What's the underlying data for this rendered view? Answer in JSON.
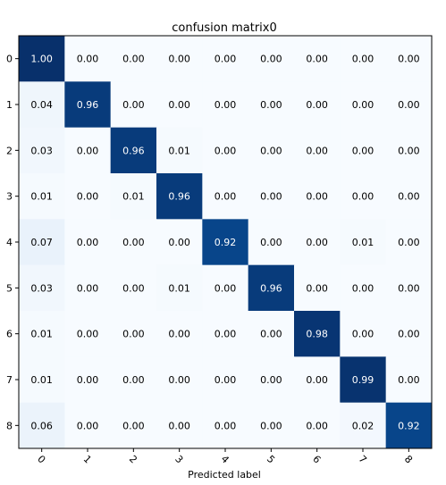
{
  "chart_data": {
    "type": "heatmap",
    "title": "confusion matrix0",
    "xlabel": "Predicted label",
    "ylabel": "",
    "x_tick_labels": [
      "0",
      "1",
      "2",
      "3",
      "4",
      "5",
      "6",
      "7",
      "8"
    ],
    "y_tick_labels": [
      "0",
      "1",
      "2",
      "3",
      "4",
      "5",
      "6",
      "7",
      "8"
    ],
    "values": [
      [
        1.0,
        0.0,
        0.0,
        0.0,
        0.0,
        0.0,
        0.0,
        0.0,
        0.0
      ],
      [
        0.04,
        0.96,
        0.0,
        0.0,
        0.0,
        0.0,
        0.0,
        0.0,
        0.0
      ],
      [
        0.03,
        0.0,
        0.96,
        0.01,
        0.0,
        0.0,
        0.0,
        0.0,
        0.0
      ],
      [
        0.01,
        0.0,
        0.01,
        0.96,
        0.0,
        0.0,
        0.0,
        0.0,
        0.0
      ],
      [
        0.07,
        0.0,
        0.0,
        0.0,
        0.92,
        0.0,
        0.0,
        0.01,
        0.0
      ],
      [
        0.03,
        0.0,
        0.0,
        0.01,
        0.0,
        0.96,
        0.0,
        0.0,
        0.0
      ],
      [
        0.01,
        0.0,
        0.0,
        0.0,
        0.0,
        0.0,
        0.98,
        0.0,
        0.0
      ],
      [
        0.01,
        0.0,
        0.0,
        0.0,
        0.0,
        0.0,
        0.0,
        0.99,
        0.0
      ],
      [
        0.06,
        0.0,
        0.0,
        0.0,
        0.0,
        0.0,
        0.0,
        0.02,
        0.92
      ]
    ],
    "value_range": [
      0,
      1
    ],
    "colormap": "Blues",
    "colors": {
      "low": "#f7fbff",
      "high": "#08306b"
    },
    "grid": false,
    "legend": "none"
  }
}
